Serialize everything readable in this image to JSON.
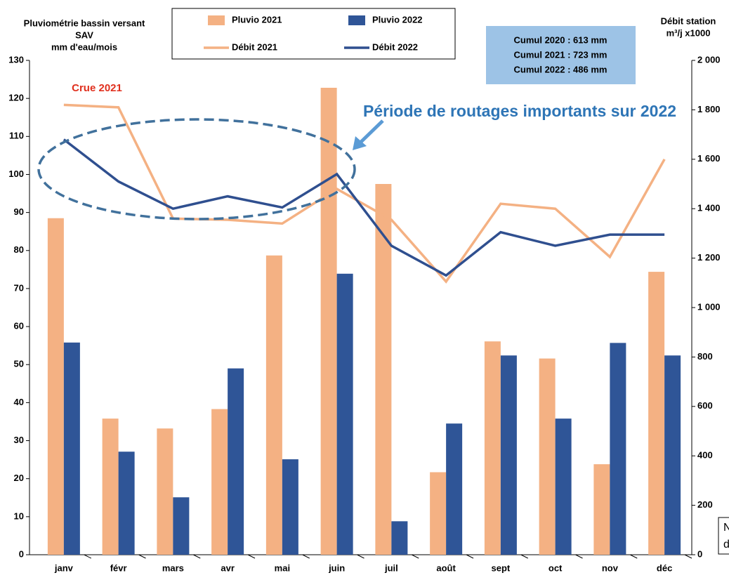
{
  "chart_data": {
    "type": "bar",
    "y_title": [
      "Pluviométrie bassin versant",
      "SAV",
      "mm d'eau/mois"
    ],
    "y2_title": [
      "Débit station",
      "m³/j x1000"
    ],
    "categories": [
      "janv",
      "févr",
      "mars",
      "avr",
      "mai",
      "juin",
      "juil",
      "août",
      "sept",
      "oct",
      "nov",
      "déc"
    ],
    "series": [
      {
        "name": "Pluvio 2021",
        "type": "bar",
        "color": "#f4b183",
        "values": [
          88.5,
          35.8,
          33.2,
          38.3,
          78.7,
          122.8,
          97.5,
          21.7,
          56.1,
          51.6,
          23.8,
          74.4
        ]
      },
      {
        "name": "Pluvio 2022",
        "type": "bar",
        "color": "#2f5597",
        "values": [
          55.8,
          27.1,
          15.1,
          49.0,
          25.1,
          73.9,
          8.8,
          34.5,
          52.4,
          35.8,
          55.7,
          52.4
        ]
      },
      {
        "name": "Débit 2021",
        "type": "line",
        "axis": "y2",
        "color": "#f4b183",
        "values": [
          1820,
          1810,
          1360,
          1355,
          1340,
          1480,
          1355,
          1105,
          1420,
          1400,
          1205,
          1600
        ]
      },
      {
        "name": "Débit 2022",
        "type": "line",
        "axis": "y2",
        "color": "#2f4f8f",
        "values": [
          1680,
          1510,
          1400,
          1450,
          1405,
          1540,
          1250,
          1130,
          1305,
          1250,
          1295,
          1295
        ]
      }
    ],
    "ylim": [
      0,
      130
    ],
    "yticks": [
      0,
      10,
      20,
      30,
      40,
      50,
      60,
      70,
      80,
      90,
      100,
      110,
      120,
      130
    ],
    "y2lim": [
      0,
      2000
    ],
    "y2ticks": [
      0,
      200,
      400,
      600,
      800,
      {
        "value": 1000,
        "label": "1 000"
      },
      {
        "value": 1200,
        "label": "1 200"
      },
      {
        "value": 1400,
        "label": "1 400"
      },
      {
        "value": 1600,
        "label": "1 600"
      },
      {
        "value": 1800,
        "label": "1 800"
      },
      {
        "value": 2000,
        "label": "2 000"
      }
    ],
    "cumul": [
      "Cumul 2020 : 613 mm",
      "Cumul 2021 : 723 mm",
      "Cumul 2022 : 486 mm"
    ],
    "annotations": [
      "Crue 2021",
      "Période de routages importants sur 2022"
    ],
    "clipped_note": [
      "N",
      "d"
    ]
  }
}
